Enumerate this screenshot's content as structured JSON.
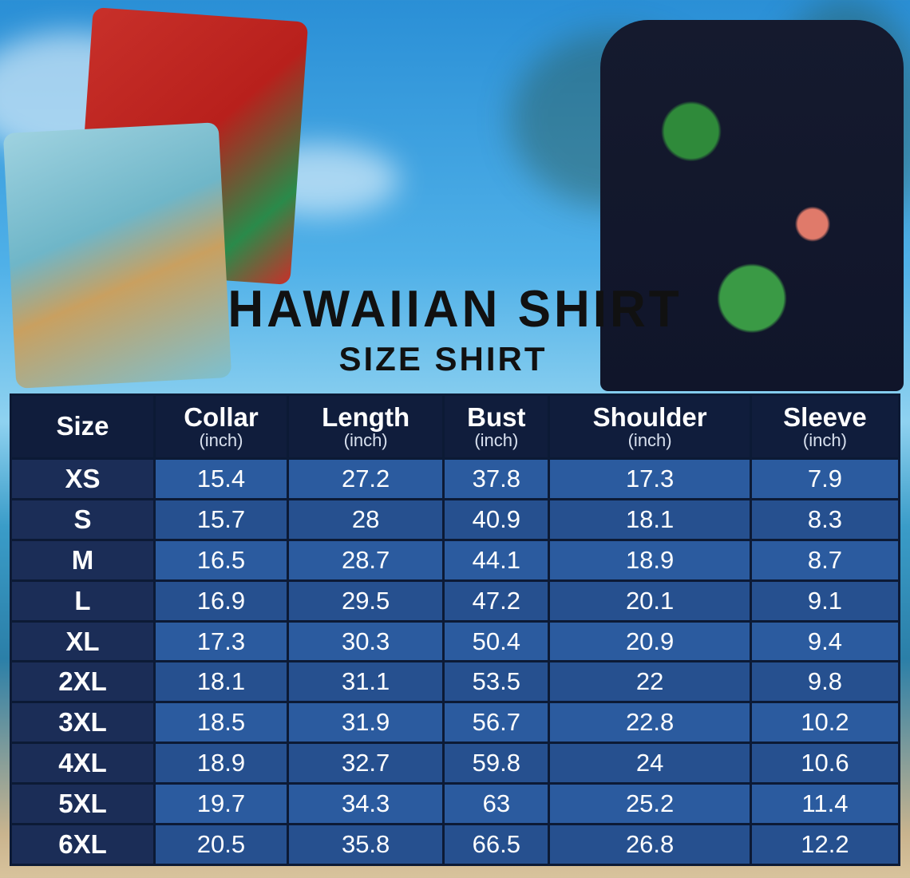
{
  "title": "HAWAIIAN SHIRT",
  "subtitle": "SIZE SHIRT",
  "colors": {
    "header_bg": "#101d3c",
    "size_col_bg": "#1b2d57",
    "cell_bg": "#2b5b9f",
    "border": "#0c1a35"
  },
  "table": {
    "headers": [
      {
        "label": "Size",
        "unit": ""
      },
      {
        "label": "Collar",
        "unit": "(inch)"
      },
      {
        "label": "Length",
        "unit": "(inch)"
      },
      {
        "label": "Bust",
        "unit": "(inch)"
      },
      {
        "label": "Shoulder",
        "unit": "(inch)"
      },
      {
        "label": "Sleeve",
        "unit": "(inch)"
      }
    ],
    "rows": [
      [
        "XS",
        "15.4",
        "27.2",
        "37.8",
        "17.3",
        "7.9"
      ],
      [
        "S",
        "15.7",
        "28",
        "40.9",
        "18.1",
        "8.3"
      ],
      [
        "M",
        "16.5",
        "28.7",
        "44.1",
        "18.9",
        "8.7"
      ],
      [
        "L",
        "16.9",
        "29.5",
        "47.2",
        "20.1",
        "9.1"
      ],
      [
        "XL",
        "17.3",
        "30.3",
        "50.4",
        "20.9",
        "9.4"
      ],
      [
        "2XL",
        "18.1",
        "31.1",
        "53.5",
        "22",
        "9.8"
      ],
      [
        "3XL",
        "18.5",
        "31.9",
        "56.7",
        "22.8",
        "10.2"
      ],
      [
        "4XL",
        "18.9",
        "32.7",
        "59.8",
        "24",
        "10.6"
      ],
      [
        "5XL",
        "19.7",
        "34.3",
        "63",
        "25.2",
        "11.4"
      ],
      [
        "6XL",
        "20.5",
        "35.8",
        "66.5",
        "26.8",
        "12.2"
      ]
    ]
  }
}
